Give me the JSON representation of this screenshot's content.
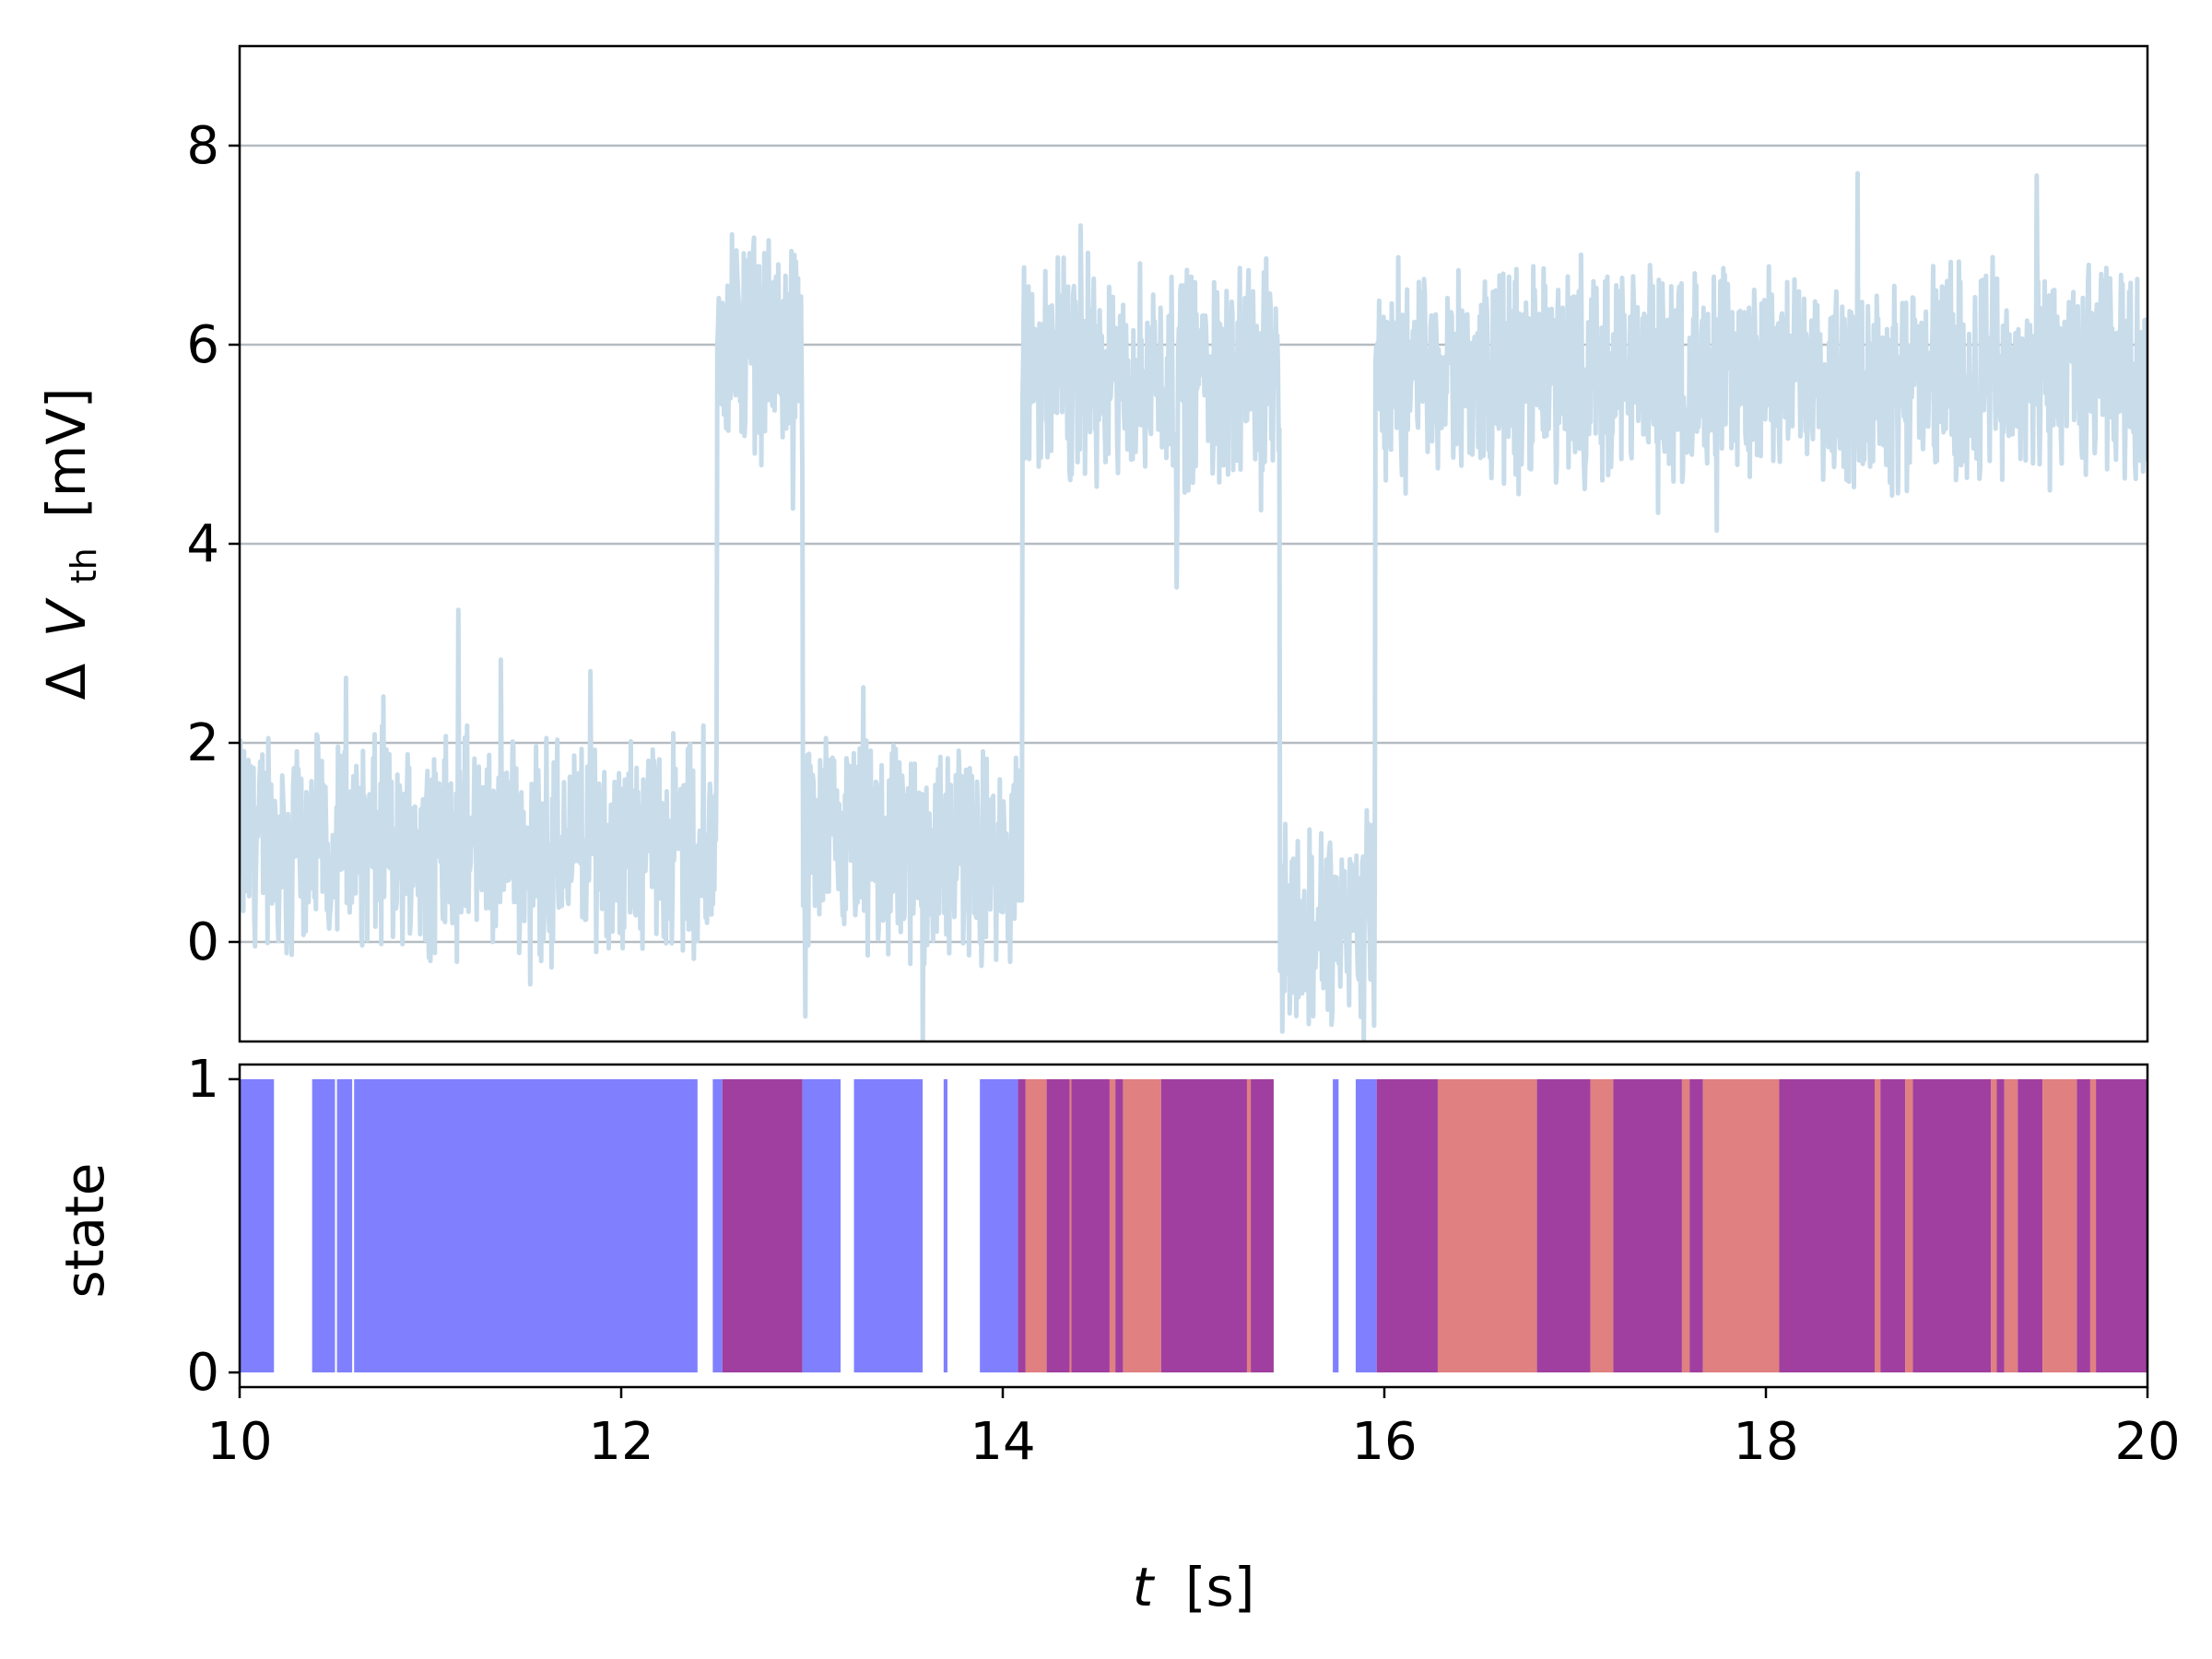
{
  "chart_data": [
    {
      "type": "line",
      "panel": "top",
      "ylabel": {
        "prefix": "Δ",
        "symbol": "V",
        "subscript": "th",
        "unit": "[mV]"
      },
      "xlim": [
        10,
        20
      ],
      "ylim": [
        -1,
        9
      ],
      "yticks": [
        0,
        2,
        4,
        6,
        8
      ],
      "yticklabels": [
        "0",
        "2",
        "4",
        "6",
        "8"
      ],
      "grid": "horizontal",
      "line_color": "#c8dcea",
      "noise_amplitude_mV": 0.9,
      "segments": [
        {
          "t_start": 10.0,
          "t_end": 12.5,
          "mean": 1.0
        },
        {
          "t_start": 12.5,
          "t_end": 12.95,
          "mean": 6.0
        },
        {
          "t_start": 12.95,
          "t_end": 14.1,
          "mean": 0.9
        },
        {
          "t_start": 14.1,
          "t_end": 15.45,
          "mean": 5.7
        },
        {
          "t_start": 15.45,
          "t_end": 15.95,
          "mean": 0.2
        },
        {
          "t_start": 15.95,
          "t_end": 20.0,
          "mean": 5.7
        }
      ]
    },
    {
      "type": "bar",
      "panel": "bottom",
      "ylabel": "state",
      "xlabel": {
        "symbol": "t",
        "unit": "[s]"
      },
      "xlim": [
        10,
        20
      ],
      "ylim": [
        -0.05,
        1.05
      ],
      "xticks": [
        10,
        12,
        14,
        16,
        18,
        20
      ],
      "xticklabels": [
        "10",
        "12",
        "14",
        "16",
        "18",
        "20"
      ],
      "yticks": [
        0,
        1
      ],
      "yticklabels": [
        "0",
        "1"
      ],
      "state_colors": {
        "blue": "#8080ff",
        "purple": "#a03f9f",
        "salmon": "#e08080"
      },
      "intervals": [
        {
          "t_start": 10.0,
          "t_end": 10.18,
          "state": "blue"
        },
        {
          "t_start": 10.38,
          "t_end": 10.5,
          "state": "blue"
        },
        {
          "t_start": 10.51,
          "t_end": 10.59,
          "state": "blue"
        },
        {
          "t_start": 10.6,
          "t_end": 12.4,
          "state": "blue"
        },
        {
          "t_start": 12.48,
          "t_end": 12.53,
          "state": "blue"
        },
        {
          "t_start": 12.53,
          "t_end": 12.95,
          "state": "purple"
        },
        {
          "t_start": 12.95,
          "t_end": 13.15,
          "state": "blue"
        },
        {
          "t_start": 13.22,
          "t_end": 13.58,
          "state": "blue"
        },
        {
          "t_start": 13.69,
          "t_end": 13.71,
          "state": "blue"
        },
        {
          "t_start": 13.88,
          "t_end": 14.08,
          "state": "blue"
        },
        {
          "t_start": 14.08,
          "t_end": 14.12,
          "state": "purple"
        },
        {
          "t_start": 14.12,
          "t_end": 14.23,
          "state": "salmon"
        },
        {
          "t_start": 14.23,
          "t_end": 14.35,
          "state": "purple"
        },
        {
          "t_start": 14.35,
          "t_end": 14.36,
          "state": "salmon"
        },
        {
          "t_start": 14.36,
          "t_end": 14.56,
          "state": "purple"
        },
        {
          "t_start": 14.56,
          "t_end": 14.59,
          "state": "salmon"
        },
        {
          "t_start": 14.59,
          "t_end": 14.63,
          "state": "purple"
        },
        {
          "t_start": 14.63,
          "t_end": 14.83,
          "state": "salmon"
        },
        {
          "t_start": 14.83,
          "t_end": 15.28,
          "state": "purple"
        },
        {
          "t_start": 15.28,
          "t_end": 15.3,
          "state": "salmon"
        },
        {
          "t_start": 15.3,
          "t_end": 15.42,
          "state": "purple"
        },
        {
          "t_start": 15.73,
          "t_end": 15.76,
          "state": "blue"
        },
        {
          "t_start": 15.85,
          "t_end": 15.96,
          "state": "blue"
        },
        {
          "t_start": 15.96,
          "t_end": 16.28,
          "state": "purple"
        },
        {
          "t_start": 16.28,
          "t_end": 16.8,
          "state": "salmon"
        },
        {
          "t_start": 16.8,
          "t_end": 17.08,
          "state": "purple"
        },
        {
          "t_start": 17.08,
          "t_end": 17.2,
          "state": "salmon"
        },
        {
          "t_start": 17.2,
          "t_end": 17.56,
          "state": "purple"
        },
        {
          "t_start": 17.56,
          "t_end": 17.6,
          "state": "salmon"
        },
        {
          "t_start": 17.6,
          "t_end": 17.67,
          "state": "purple"
        },
        {
          "t_start": 17.67,
          "t_end": 18.07,
          "state": "salmon"
        },
        {
          "t_start": 18.07,
          "t_end": 18.57,
          "state": "purple"
        },
        {
          "t_start": 18.57,
          "t_end": 18.6,
          "state": "salmon"
        },
        {
          "t_start": 18.6,
          "t_end": 18.73,
          "state": "purple"
        },
        {
          "t_start": 18.73,
          "t_end": 18.77,
          "state": "salmon"
        },
        {
          "t_start": 18.77,
          "t_end": 19.18,
          "state": "purple"
        },
        {
          "t_start": 19.18,
          "t_end": 19.21,
          "state": "salmon"
        },
        {
          "t_start": 19.21,
          "t_end": 19.25,
          "state": "purple"
        },
        {
          "t_start": 19.25,
          "t_end": 19.32,
          "state": "salmon"
        },
        {
          "t_start": 19.32,
          "t_end": 19.45,
          "state": "purple"
        },
        {
          "t_start": 19.45,
          "t_end": 19.63,
          "state": "salmon"
        },
        {
          "t_start": 19.63,
          "t_end": 19.7,
          "state": "purple"
        },
        {
          "t_start": 19.7,
          "t_end": 19.73,
          "state": "salmon"
        },
        {
          "t_start": 19.73,
          "t_end": 20.0,
          "state": "purple"
        }
      ]
    }
  ]
}
